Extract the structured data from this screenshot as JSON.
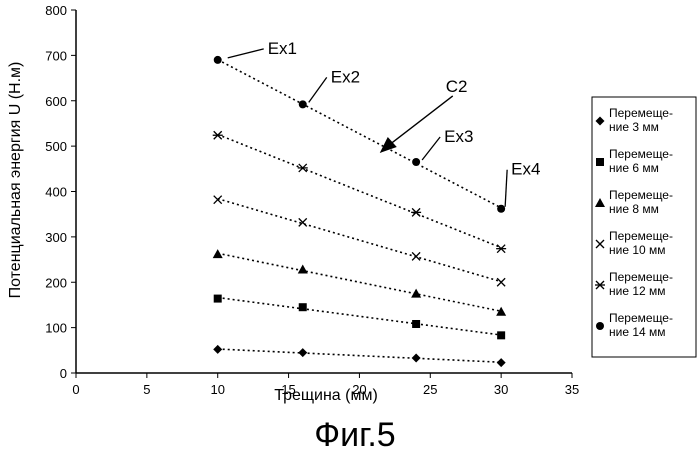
{
  "figure_caption": "Фиг.5",
  "chart_data": {
    "type": "scatter",
    "xlabel": "Трещина  (мм)",
    "ylabel": "Потенциальная энергия  U  (Н.м)",
    "xlim": [
      0,
      35
    ],
    "ylim": [
      0,
      800
    ],
    "xticks": [
      "0",
      "5",
      "10",
      "15",
      "20",
      "25",
      "30",
      "35"
    ],
    "yticks": [
      "0",
      "100",
      "200",
      "300",
      "400",
      "500",
      "600",
      "700",
      "800"
    ],
    "grid": false,
    "legend_position": "right",
    "trendlines": "dotted linear fit per series",
    "x": [
      10,
      16,
      24,
      30
    ],
    "series": [
      {
        "name": "Перемещение 3 мм",
        "legend_lines": [
          "Перемеще-",
          "ние 3 мм"
        ],
        "marker": "diamond",
        "values": [
          52,
          45,
          33,
          23
        ]
      },
      {
        "name": "Перемещение 6 мм",
        "legend_lines": [
          "Перемеще-",
          "ние 6 мм"
        ],
        "marker": "square",
        "values": [
          164,
          145,
          108,
          83
        ]
      },
      {
        "name": "Перемещение 8 мм",
        "legend_lines": [
          "Перемеще-",
          "ние 8 мм"
        ],
        "marker": "triangle",
        "values": [
          262,
          228,
          175,
          135
        ]
      },
      {
        "name": "Перемещение 10 мм",
        "legend_lines": [
          "Перемеще-",
          "ние 10 мм"
        ],
        "marker": "x",
        "values": [
          382,
          332,
          257,
          200
        ]
      },
      {
        "name": "Перемещение 12 мм",
        "legend_lines": [
          "Перемеще-",
          "ние 12 мм"
        ],
        "marker": "star",
        "values": [
          524,
          452,
          354,
          274
        ]
      },
      {
        "name": "Перемещение 14 мм",
        "legend_lines": [
          "Перемеще-",
          "ние 14 мм"
        ],
        "marker": "circle",
        "values": [
          690,
          592,
          465,
          362
        ]
      }
    ],
    "annotations": [
      {
        "text": "Ex1",
        "x": 10,
        "y": 690
      },
      {
        "text": "Ex2",
        "x": 16,
        "y": 592
      },
      {
        "text": "Ex3",
        "x": 24,
        "y": 465
      },
      {
        "text": "Ex4",
        "x": 30,
        "y": 362
      },
      {
        "text": "C2",
        "x": 22,
        "y": 540,
        "arrow": true
      }
    ]
  }
}
